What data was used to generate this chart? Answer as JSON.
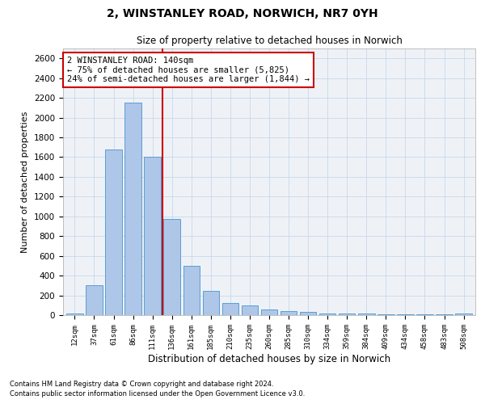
{
  "title_line1": "2, WINSTANLEY ROAD, NORWICH, NR7 0YH",
  "title_line2": "Size of property relative to detached houses in Norwich",
  "xlabel": "Distribution of detached houses by size in Norwich",
  "ylabel": "Number of detached properties",
  "categories": [
    "12sqm",
    "37sqm",
    "61sqm",
    "86sqm",
    "111sqm",
    "136sqm",
    "161sqm",
    "185sqm",
    "210sqm",
    "235sqm",
    "260sqm",
    "285sqm",
    "310sqm",
    "334sqm",
    "359sqm",
    "384sqm",
    "409sqm",
    "434sqm",
    "458sqm",
    "483sqm",
    "508sqm"
  ],
  "values": [
    20,
    300,
    1675,
    2150,
    1600,
    970,
    500,
    245,
    120,
    100,
    60,
    45,
    30,
    20,
    20,
    15,
    10,
    12,
    5,
    10,
    15
  ],
  "bar_color": "#aec6e8",
  "bar_edge_color": "#5a9fd4",
  "vline_x": 4.5,
  "vline_color": "#cc0000",
  "annotation_text": "2 WINSTANLEY ROAD: 140sqm\n← 75% of detached houses are smaller (5,825)\n24% of semi-detached houses are larger (1,844) →",
  "annotation_box_color": "#cc0000",
  "ylim": [
    0,
    2700
  ],
  "yticks": [
    0,
    200,
    400,
    600,
    800,
    1000,
    1200,
    1400,
    1600,
    1800,
    2000,
    2200,
    2400,
    2600
  ],
  "grid_color": "#c8d8e8",
  "background_color": "#eef2f7",
  "footnote1": "Contains HM Land Registry data © Crown copyright and database right 2024.",
  "footnote2": "Contains public sector information licensed under the Open Government Licence v3.0."
}
